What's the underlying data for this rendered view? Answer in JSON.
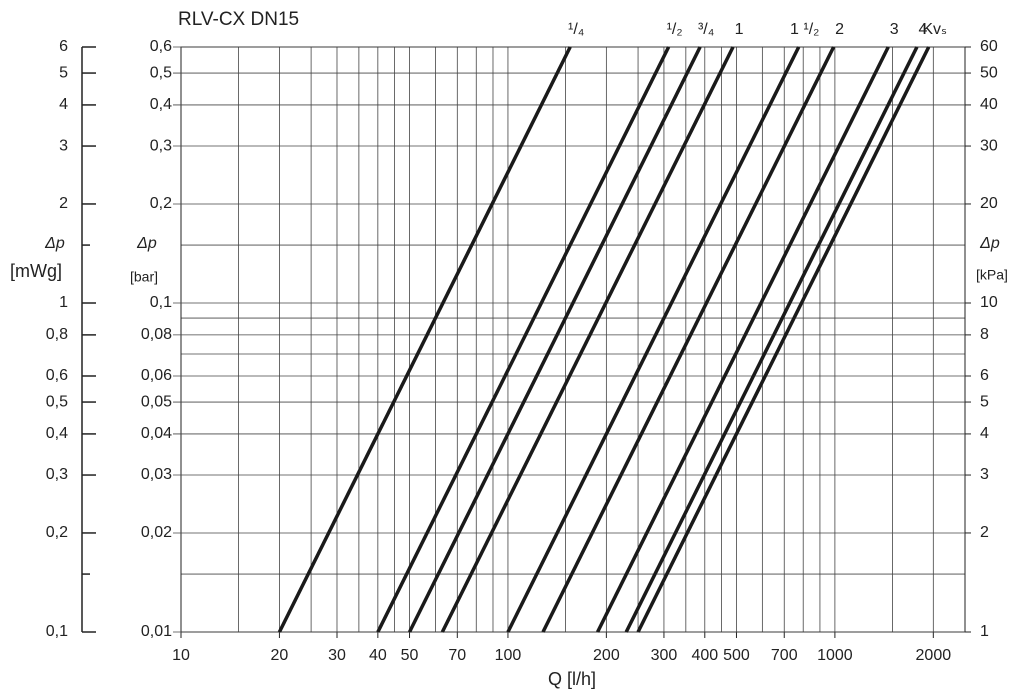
{
  "chart_data": {
    "type": "line",
    "title": "RLV-CX DN15",
    "x_label": "Q [l/h]",
    "y_label": "Δp",
    "y_unit": "[bar]",
    "y2_label": "Δp",
    "y2_unit": "[mWg]",
    "y3_label": "Δp",
    "y3_unit": "[kPa]",
    "log_x": true,
    "log_y": true,
    "grid": true,
    "color": "#1a1a1a",
    "xlim": [
      10,
      2500
    ],
    "xticks": [
      10,
      20,
      30,
      40,
      50,
      70,
      100,
      200,
      300,
      400,
      500,
      700,
      1000,
      2000
    ],
    "xgrid": [
      15,
      20,
      25,
      30,
      35,
      40,
      45,
      50,
      60,
      70,
      80,
      90,
      100,
      150,
      200,
      250,
      300,
      350,
      400,
      450,
      500,
      600,
      700,
      800,
      900,
      1000,
      1500,
      2000
    ],
    "ylim": [
      0.01,
      0.6
    ],
    "yticks": [
      {
        "value": 0.01,
        "label": "0,01"
      },
      {
        "value": 0.02,
        "label": "0,02"
      },
      {
        "value": 0.03,
        "label": "0,03"
      },
      {
        "value": 0.04,
        "label": "0,04"
      },
      {
        "value": 0.05,
        "label": "0,05"
      },
      {
        "value": 0.06,
        "label": "0,06"
      },
      {
        "value": 0.08,
        "label": "0,08"
      },
      {
        "value": 0.1,
        "label": "0,1"
      },
      {
        "value": 0.2,
        "label": "0,2"
      },
      {
        "value": 0.3,
        "label": "0,3"
      },
      {
        "value": 0.4,
        "label": "0,4"
      },
      {
        "value": 0.5,
        "label": "0,5"
      },
      {
        "value": 0.6,
        "label": "0,6"
      }
    ],
    "ygrid": [
      0.015,
      0.07,
      0.09,
      0.15
    ],
    "y2lim": [
      0.1,
      6
    ],
    "y2ticks": [
      {
        "value": 0.1,
        "label": "0,1"
      },
      {
        "value": 0.2,
        "label": "0,2"
      },
      {
        "value": 0.3,
        "label": "0,3"
      },
      {
        "value": 0.4,
        "label": "0,4"
      },
      {
        "value": 0.5,
        "label": "0,5"
      },
      {
        "value": 0.6,
        "label": "0,6"
      },
      {
        "value": 0.8,
        "label": "0,8"
      },
      1,
      2,
      3,
      4,
      5,
      6
    ],
    "y2minor": [
      0.15,
      1.5
    ],
    "y3lim": [
      1,
      60
    ],
    "y3ticks": [
      1,
      2,
      3,
      4,
      5,
      6,
      8,
      10,
      20,
      30,
      40,
      50,
      60
    ],
    "series": [
      {
        "name": "¹/₄",
        "x": [
          20,
          155
        ],
        "values": [
          0.01,
          0.6
        ]
      },
      {
        "name": "¹/₂",
        "x": [
          40,
          310
        ],
        "values": [
          0.01,
          0.6
        ]
      },
      {
        "name": "³/₄",
        "x": [
          50,
          387
        ],
        "values": [
          0.01,
          0.6
        ]
      },
      {
        "name": "1",
        "x": [
          63,
          488
        ],
        "values": [
          0.01,
          0.6
        ]
      },
      {
        "name": "1 ¹/₂",
        "x": [
          100,
          775
        ],
        "values": [
          0.01,
          0.6
        ]
      },
      {
        "name": "2",
        "x": [
          128,
          991
        ],
        "values": [
          0.01,
          0.6
        ]
      },
      {
        "name": "3",
        "x": [
          188,
          1456
        ],
        "values": [
          0.01,
          0.6
        ]
      },
      {
        "name": "4",
        "x": [
          230,
          1782
        ],
        "values": [
          0.01,
          0.6
        ]
      },
      {
        "name": "Kvₛ",
        "x": [
          250,
          1936
        ],
        "values": [
          0.01,
          0.6
        ]
      }
    ]
  }
}
